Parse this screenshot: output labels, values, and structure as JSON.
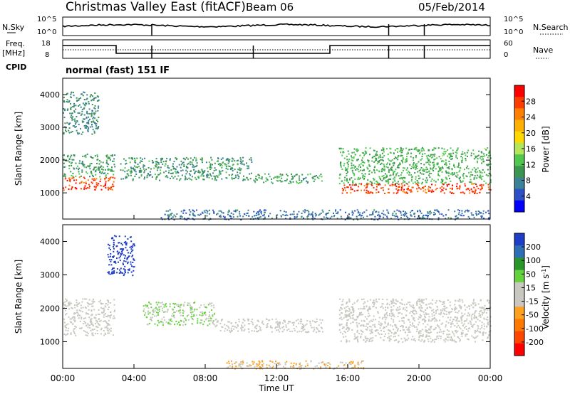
{
  "header": {
    "station": "Christmas Valley East (fitACF)",
    "beam": "Beam 06",
    "date": "05/Feb/2014"
  },
  "noise_panel": {
    "left_label": "N.Sky",
    "right_label": "N.Search",
    "left_ticks": [
      "10^5",
      "10^0"
    ],
    "right_ticks": [
      "10^5",
      "10^0"
    ]
  },
  "freq_panel": {
    "left_label_1": "Freq.",
    "left_label_2": "[MHz]",
    "right_label": "Nave",
    "left_ticks": [
      "18",
      "8"
    ],
    "right_ticks": [
      "60",
      "0"
    ]
  },
  "cpid": {
    "label": "CPID",
    "mode": "normal (fast) 151 IF"
  },
  "power_colorbar": {
    "label": "Power [dB]",
    "ticks": [
      "28",
      "24",
      "20",
      "16",
      "12",
      "8",
      "4"
    ],
    "colors": [
      "#ff0000",
      "#ff3c00",
      "#ff7f00",
      "#ffb000",
      "#ffd800",
      "#b4e65a",
      "#50c850",
      "#3c9650",
      "#3c8296",
      "#2d50c8",
      "#0000ff"
    ]
  },
  "velocity_colorbar": {
    "label_main": "Velocity [m s",
    "label_sup": "-1",
    "label_end": "]",
    "ticks": [
      "200",
      "100",
      "50",
      "15",
      "-15",
      "-50",
      "-100",
      "-200"
    ],
    "colors": [
      "#1f3ec8",
      "#2d6eb4",
      "#289628",
      "#64d23c",
      "#c8c8c0",
      "#c8c8c0",
      "#ffa01e",
      "#ff7800",
      "#ff4600",
      "#ff0000"
    ]
  },
  "chart_data": [
    {
      "type": "heatmap",
      "panel": "power",
      "ylabel": "Slant Range [km]",
      "ylim": [
        200,
        4500
      ],
      "yticks": [
        1000,
        2000,
        3000,
        4000
      ],
      "xlim": [
        0,
        24
      ],
      "zlim": [
        0,
        30
      ],
      "bands": [
        {
          "t0": 0.0,
          "t1": 2.9,
          "r0": 1100,
          "r1": 1500,
          "value": 26
        },
        {
          "t0": 0.0,
          "t1": 2.9,
          "r0": 1500,
          "r1": 2200,
          "value": 10
        },
        {
          "t0": 0.0,
          "t1": 2.0,
          "r0": 2800,
          "r1": 4100,
          "value": 8
        },
        {
          "t0": 3.2,
          "t1": 10.6,
          "r0": 1400,
          "r1": 2100,
          "value": 9
        },
        {
          "t0": 10.7,
          "t1": 14.6,
          "r0": 1300,
          "r1": 1600,
          "value": 10
        },
        {
          "t0": 15.5,
          "t1": 24.0,
          "r0": 1000,
          "r1": 1300,
          "value": 26
        },
        {
          "t0": 15.5,
          "t1": 24.0,
          "r0": 1300,
          "r1": 2400,
          "value": 11
        },
        {
          "t0": 5.5,
          "t1": 24.0,
          "r0": 200,
          "r1": 500,
          "value": 6
        }
      ]
    },
    {
      "type": "heatmap",
      "panel": "velocity",
      "ylabel": "Slant Range [km]",
      "ylim": [
        200,
        4500
      ],
      "yticks": [
        1000,
        2000,
        3000,
        4000
      ],
      "xlim": [
        0,
        24
      ],
      "zlim": [
        -200,
        200
      ],
      "bands": [
        {
          "t0": 0.0,
          "t1": 2.9,
          "r0": 1200,
          "r1": 2300,
          "value": 0
        },
        {
          "t0": 2.5,
          "t1": 4.0,
          "r0": 3000,
          "r1": 4200,
          "value": 200
        },
        {
          "t0": 4.5,
          "t1": 8.5,
          "r0": 1500,
          "r1": 2200,
          "value": 40
        },
        {
          "t0": 8.5,
          "t1": 14.6,
          "r0": 1300,
          "r1": 1700,
          "value": 0
        },
        {
          "t0": 15.5,
          "t1": 24.0,
          "r0": 1000,
          "r1": 2300,
          "value": 0
        },
        {
          "t0": 9.0,
          "t1": 17.0,
          "r0": 200,
          "r1": 450,
          "value": -40
        }
      ]
    }
  ],
  "x_axis": {
    "label": "Time UT",
    "ticks": [
      "00:00",
      "04:00",
      "08:00",
      "12:00",
      "16:00",
      "20:00",
      "00:00"
    ]
  }
}
